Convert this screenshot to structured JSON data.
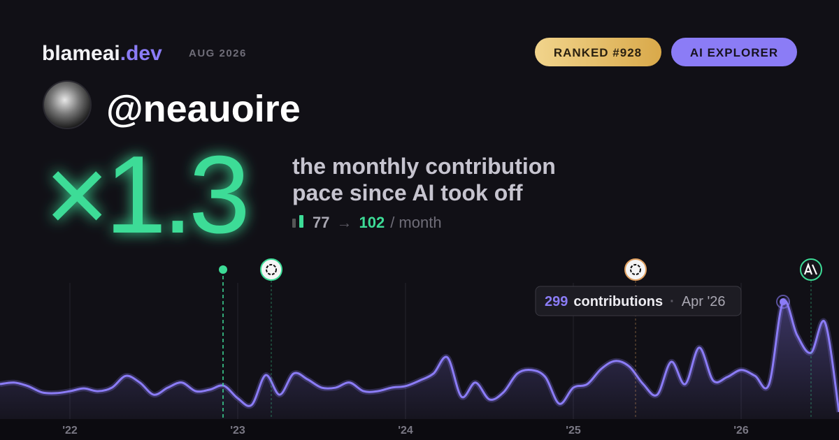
{
  "header": {
    "brand": "blameai",
    "brand_tld": ".dev",
    "date": "AUG 2026",
    "badges": [
      "RANKED #928",
      "AI EXPLORER"
    ]
  },
  "profile": {
    "handle": "@neauoire"
  },
  "headline": {
    "multiplier": "×1.3",
    "caption_lines": [
      "the monthly contribution",
      "pace since AI took off"
    ],
    "before": 77,
    "arrow": "→",
    "after": 102,
    "unit": "/ month"
  },
  "chart_data": {
    "type": "line",
    "categories": [
      null,
      null,
      null,
      null,
      null,
      "'22",
      null,
      null,
      null,
      null,
      null,
      null,
      null,
      null,
      null,
      null,
      null,
      "'23",
      null,
      null,
      null,
      null,
      null,
      null,
      null,
      null,
      null,
      null,
      null,
      "'24",
      null,
      null,
      null,
      null,
      null,
      null,
      null,
      null,
      null,
      null,
      null,
      "'25",
      null,
      null,
      null,
      null,
      null,
      null,
      null,
      null,
      null,
      null,
      null,
      "'26",
      null,
      null,
      null,
      null,
      null,
      null,
      null
    ],
    "series": [
      {
        "name": "contributions",
        "color": "#8b7cf6",
        "values": [
          89,
          93,
          84,
          68,
          66,
          71,
          78,
          71,
          80,
          110,
          93,
          62,
          80,
          93,
          71,
          75,
          85,
          53,
          36,
          112,
          62,
          116,
          101,
          80,
          80,
          93,
          71,
          71,
          80,
          84,
          98,
          116,
          157,
          57,
          93,
          50,
          68,
          116,
          125,
          107,
          39,
          80,
          89,
          128,
          148,
          134,
          89,
          62,
          146,
          89,
          182,
          98,
          107,
          125,
          110,
          89,
          299,
          214,
          169,
          246,
          18
        ]
      }
    ],
    "ylim": [
      0,
      340
    ],
    "grid": true,
    "tooltip": {
      "value": 299,
      "label": "contributions",
      "date": "Apr '26"
    }
  }
}
